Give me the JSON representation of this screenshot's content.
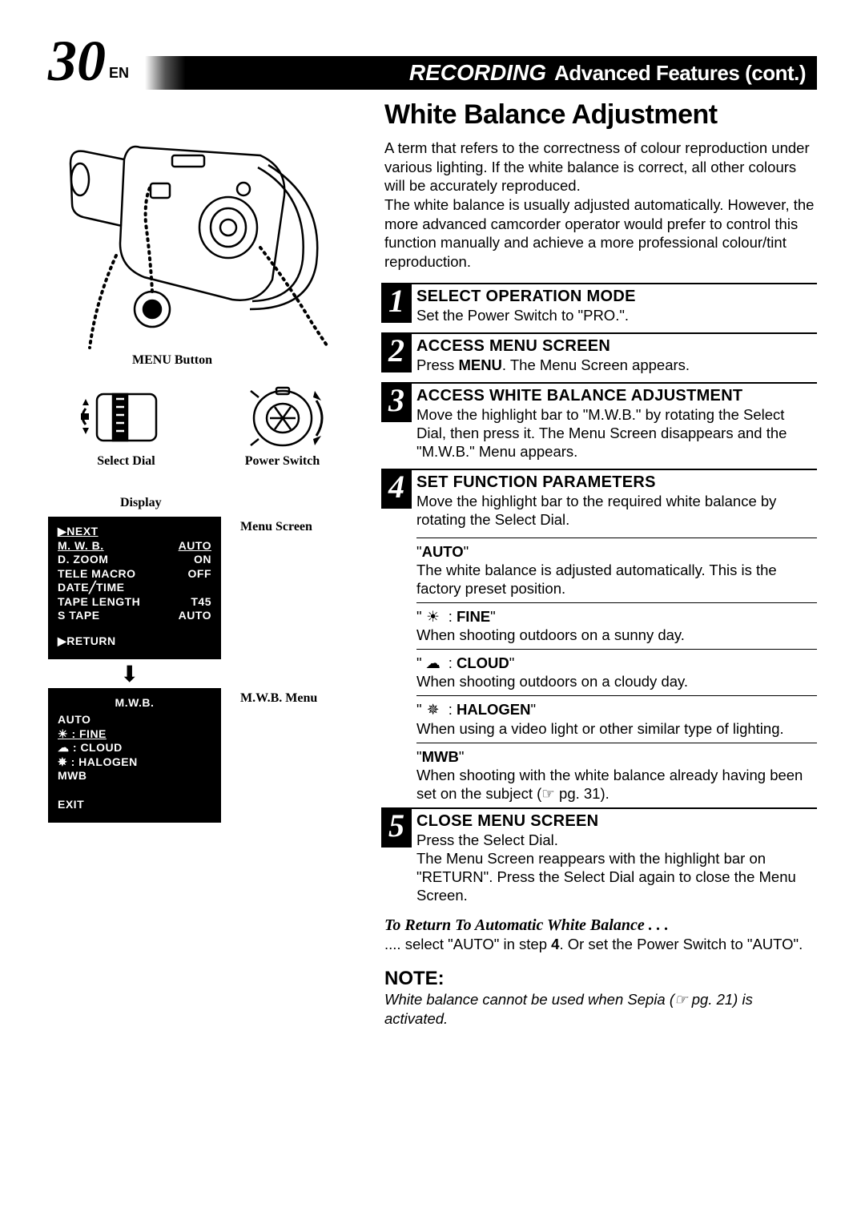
{
  "page_number": "30",
  "page_suffix": "EN",
  "header": {
    "recording": "RECORDING",
    "advanced": "Advanced Features (cont.)"
  },
  "section_title": "White Balance Adjustment",
  "intro": "A term that refers to the correctness of colour reproduction under various lighting. If the white balance is correct, all other colours will be accurately reproduced.\nThe white balance is usually adjusted automatically. However, the more advanced camcorder operator would prefer to control this function manually and achieve a more professional colour/tint reproduction.",
  "steps": [
    {
      "n": "1",
      "title": "SELECT OPERATION MODE",
      "body": "Set the Power Switch to \"PRO.\"."
    },
    {
      "n": "2",
      "title": "ACCESS MENU SCREEN",
      "body_html": "Press <b>MENU</b>. The Menu Screen appears."
    },
    {
      "n": "3",
      "title": "ACCESS WHITE BALANCE ADJUSTMENT",
      "body": "Move the highlight bar to \"M.W.B.\" by rotating the Select Dial, then press it. The Menu Screen disappears and the \"M.W.B.\" Menu appears."
    },
    {
      "n": "4",
      "title": "SET FUNCTION PARAMETERS",
      "body": "Move the highlight bar to the required white balance by rotating the Select Dial."
    },
    {
      "n": "5",
      "title": "CLOSE MENU SCREEN",
      "body": "Press the Select Dial.\nThe Menu Screen reappears with the highlight bar on \"RETURN\". Press the Select Dial again to close the Menu Screen."
    }
  ],
  "wb_options": [
    {
      "label": "AUTO",
      "icon": "",
      "desc": "The white balance is adjusted automatically. This is the factory preset position."
    },
    {
      "label": "FINE",
      "icon": "sun",
      "desc": "When shooting outdoors on a sunny day."
    },
    {
      "label": "CLOUD",
      "icon": "cloud",
      "desc": "When shooting outdoors on a cloudy day."
    },
    {
      "label": "HALOGEN",
      "icon": "halogen",
      "desc": "When using a video light or other similar type of lighting."
    },
    {
      "label": "MWB",
      "icon": "",
      "desc_html": "When shooting with the white balance already having been set on the subject (☞ pg. 31)."
    }
  ],
  "return": {
    "heading": "To Return To Automatic White Balance . . .",
    "body_html": ".... select \"AUTO\" in step <b>4</b>. Or set the Power Switch to \"AUTO\"."
  },
  "note": {
    "heading": "NOTE:",
    "body": "White balance cannot be used when Sepia (☞ pg. 21) is activated."
  },
  "left": {
    "menu_button": "MENU Button",
    "select_dial": "Select Dial",
    "power_switch": "Power Switch",
    "display": "Display",
    "menu_screen": "Menu Screen",
    "mwb_menu": "M.W.B. Menu",
    "lcd1": {
      "rows": [
        [
          "▶NEXT",
          ""
        ],
        [
          "M. W. B.",
          "AUTO"
        ],
        [
          "D. ZOOM",
          "ON"
        ],
        [
          "TELE MACRO",
          "OFF"
        ],
        [
          "DATE╱TIME",
          ""
        ],
        [
          "TAPE LENGTH",
          "T45"
        ],
        [
          "S TAPE",
          "AUTO"
        ]
      ],
      "return": "▶RETURN"
    },
    "lcd2": {
      "title": "M.W.B.",
      "rows": [
        {
          "text": "AUTO",
          "icon": ""
        },
        {
          "text": ": FINE",
          "icon": "sun",
          "underlined": true
        },
        {
          "text": ": CLOUD",
          "icon": "cloud"
        },
        {
          "text": ": HALOGEN",
          "icon": "halogen"
        },
        {
          "text": "MWB",
          "icon": ""
        }
      ],
      "exit": "EXIT"
    }
  },
  "colors": {
    "black": "#000000",
    "white": "#ffffff"
  }
}
